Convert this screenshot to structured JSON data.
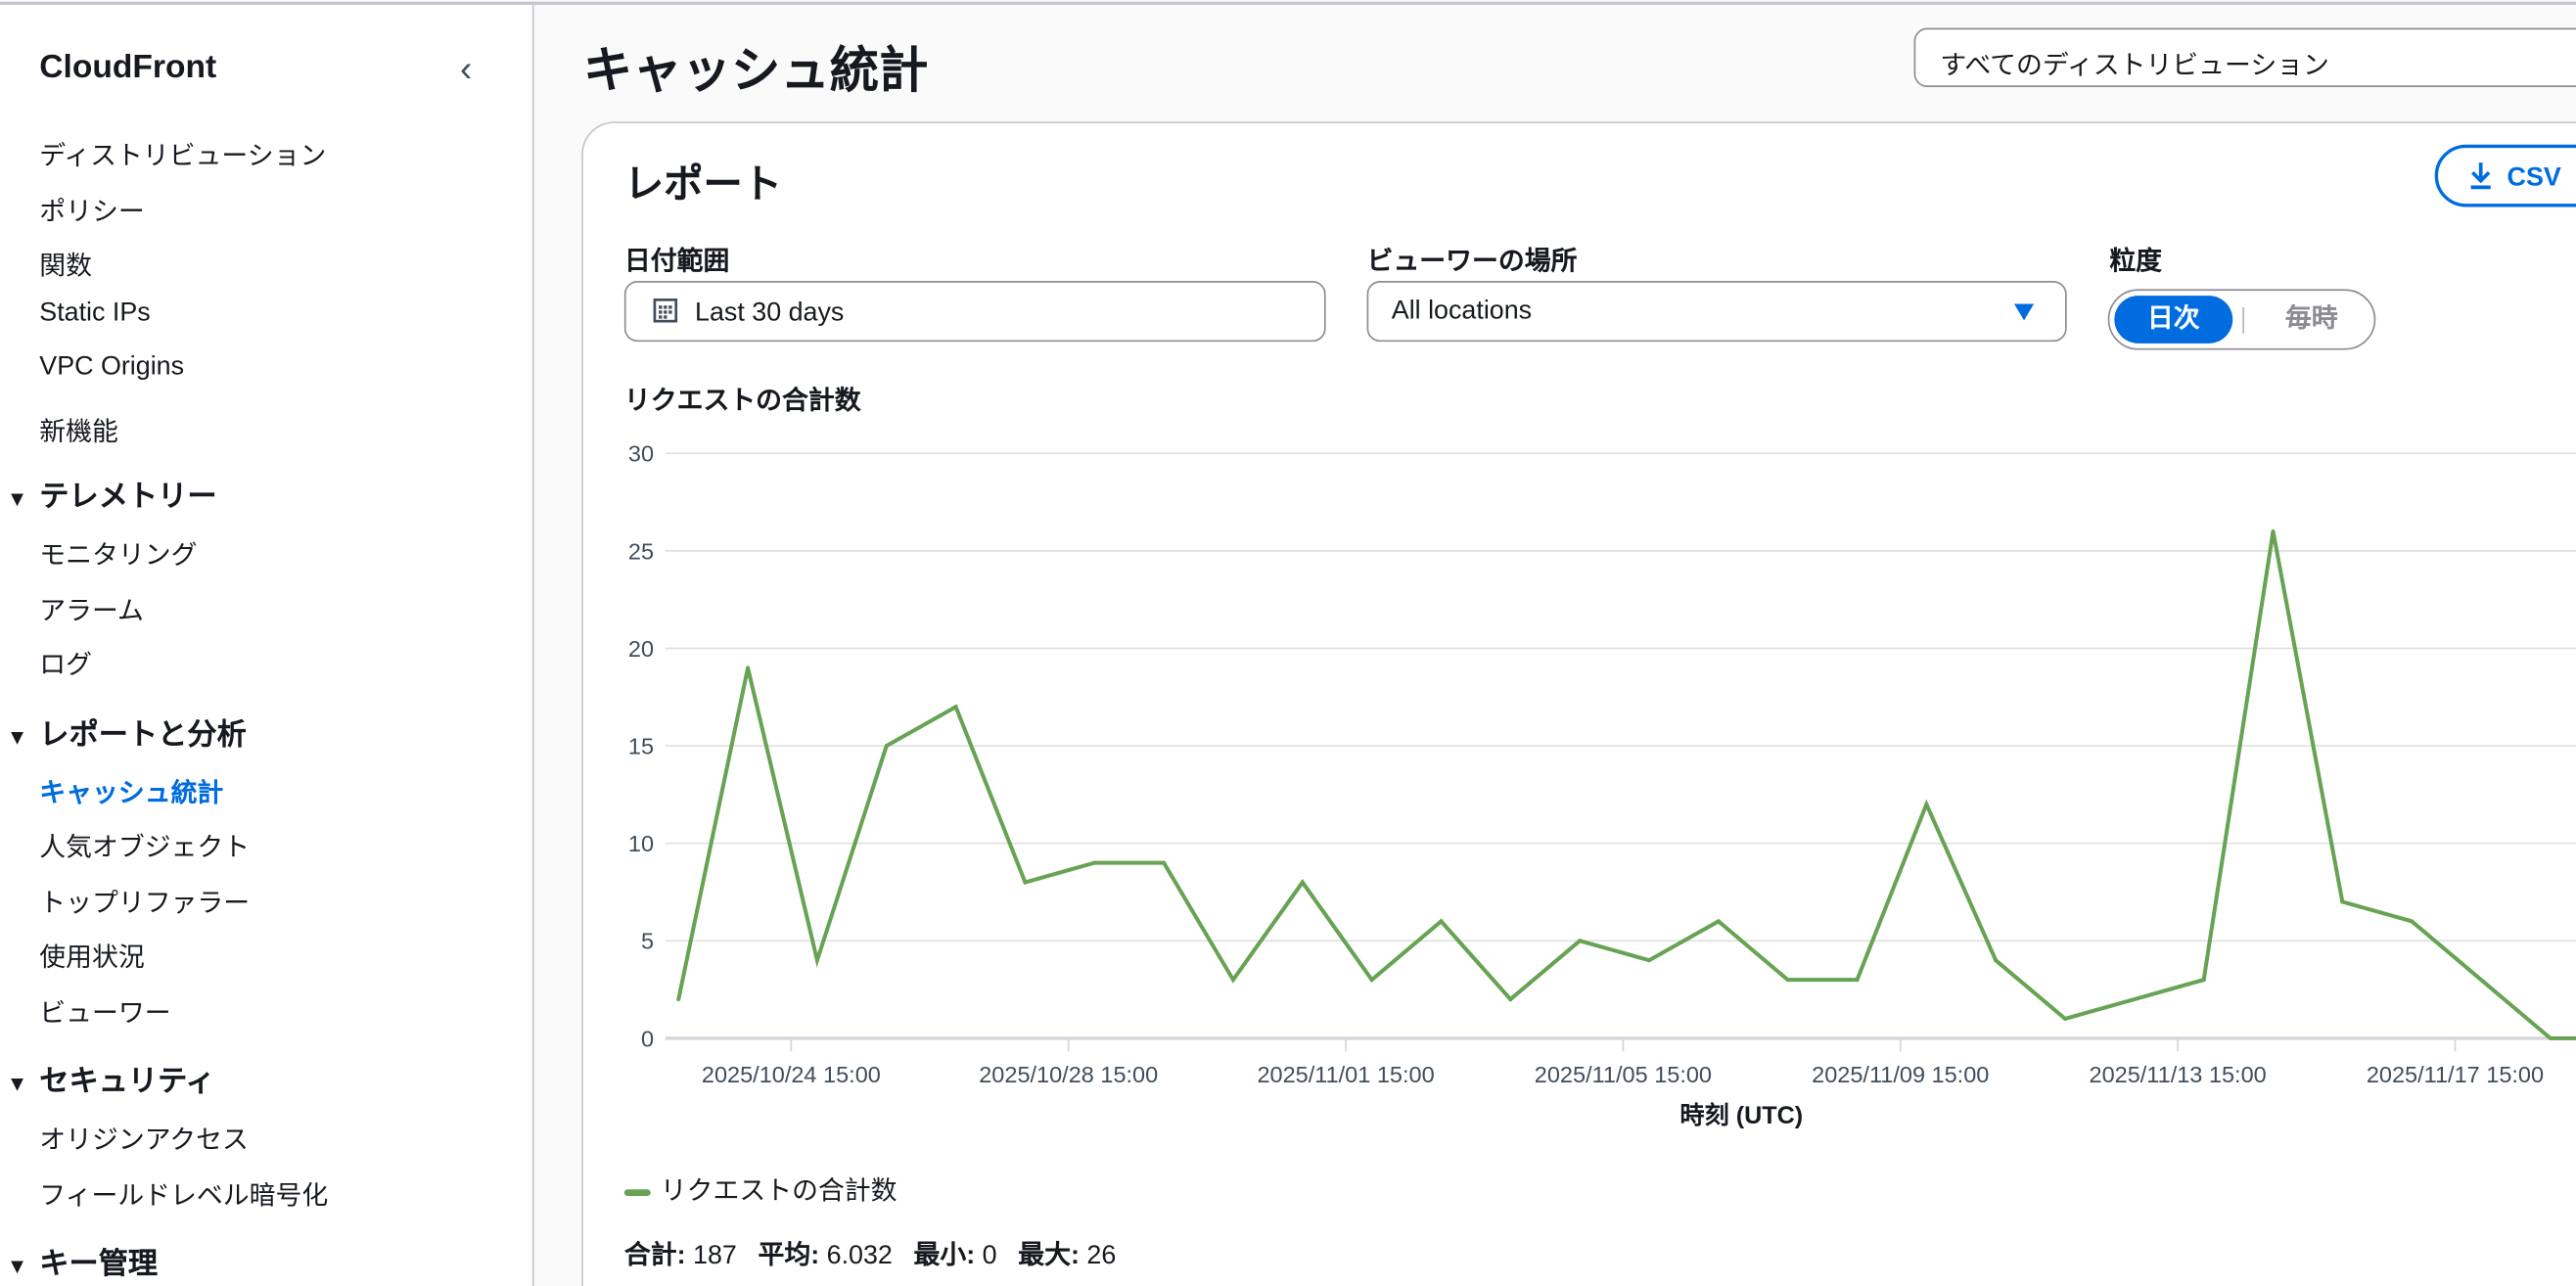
{
  "sidebar": {
    "brand": "CloudFront",
    "items_top": [
      "ディストリビューション",
      "ポリシー",
      "関数",
      "Static IPs",
      "VPC Origins",
      "新機能"
    ],
    "sections": [
      {
        "title": "テレメトリー",
        "items": [
          "モニタリング",
          "アラーム",
          "ログ"
        ]
      },
      {
        "title": "レポートと分析",
        "items": [
          "キャッシュ統計",
          "人気オブジェクト",
          "トップリファラー",
          "使用状況",
          "ビューワー"
        ]
      },
      {
        "title": "セキュリティ",
        "items": [
          "オリジンアクセス",
          "フィールドレベル暗号化"
        ]
      },
      {
        "title": "キー管理",
        "items": []
      }
    ],
    "active_item": "キャッシュ統計"
  },
  "header": {
    "title": "キャッシュ統計",
    "distribution_select": "すべてのディストリビューション"
  },
  "report": {
    "title": "レポート",
    "csv_button": "CSV",
    "date_range_label": "日付範囲",
    "date_range_value": "Last 30 days",
    "location_label": "ビューワーの場所",
    "location_value": "All locations",
    "granularity_label": "粒度",
    "granularity_options": [
      "日次",
      "毎時"
    ],
    "granularity_selected": "日次"
  },
  "colors": {
    "accent": "#006ce0",
    "series": "#67a353",
    "grid": "#e0e0e4"
  },
  "chart_data": {
    "type": "line",
    "title": "リクエストの合計数",
    "xlabel": "時刻 (UTC)",
    "ylabel": "",
    "ylim": [
      0,
      30
    ],
    "yticks": [
      "0",
      "5",
      "10",
      "15",
      "20",
      "25",
      "30"
    ],
    "xticks": [
      "2025/10/24 15:00",
      "2025/10/28 15:00",
      "2025/11/01 15:00",
      "2025/11/05 15:00",
      "2025/11/09 15:00",
      "2025/11/13 15:00",
      "2025/11/17 15:00"
    ],
    "series": [
      {
        "name": "リクエストの合計数",
        "x": [
          "2025-10-23",
          "2025-10-24",
          "2025-10-25",
          "2025-10-26",
          "2025-10-27",
          "2025-10-28",
          "2025-10-29",
          "2025-10-30",
          "2025-10-31",
          "2025-11-01",
          "2025-11-02",
          "2025-11-03",
          "2025-11-04",
          "2025-11-05",
          "2025-11-06",
          "2025-11-07",
          "2025-11-08",
          "2025-11-09",
          "2025-11-10",
          "2025-11-11",
          "2025-11-12",
          "2025-11-14",
          "2025-11-15",
          "2025-11-16",
          "2025-11-17",
          "2025-11-19",
          "2025-11-20"
        ],
        "values": [
          2,
          19,
          4,
          15,
          17,
          8,
          9,
          9,
          3,
          8,
          3,
          6,
          2,
          5,
          4,
          6,
          3,
          3,
          12,
          4,
          1,
          3,
          26,
          7,
          6,
          0,
          0
        ]
      }
    ],
    "legend": "bottom-left",
    "grid": true
  },
  "stats": {
    "sum_label": "合計:",
    "sum": "187",
    "avg_label": "平均:",
    "avg": "6.032",
    "min_label": "最小:",
    "min": "0",
    "max_label": "最大:",
    "max": "26"
  }
}
